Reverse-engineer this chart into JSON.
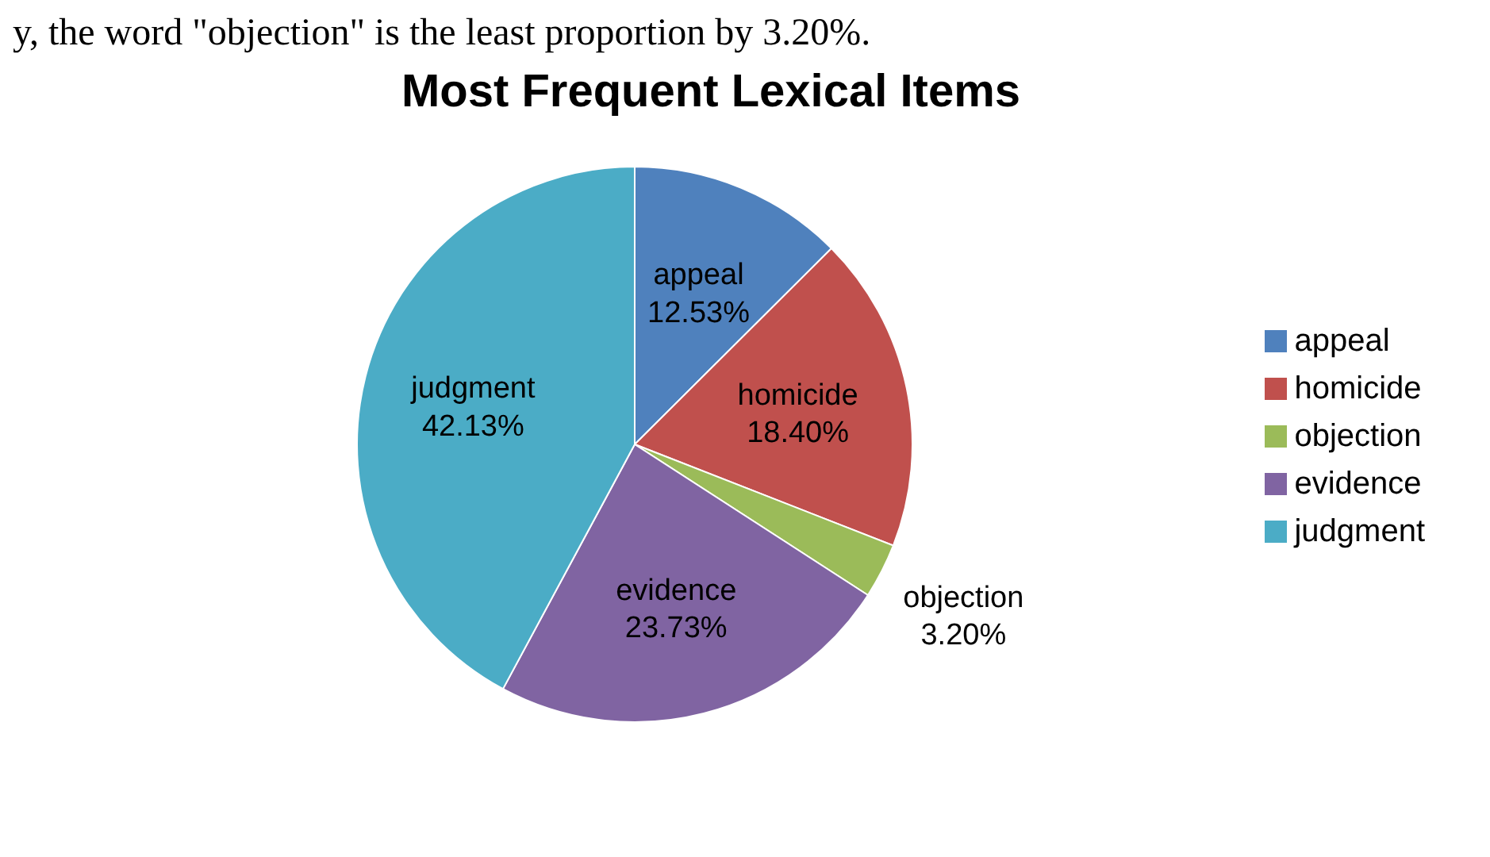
{
  "chart_data": {
    "type": "pie",
    "title": "Most Frequent Lexical Items",
    "annotations": [
      "y, the word \"objection\" is the least proportion by 3.20%."
    ],
    "categories": [
      "appeal",
      "homicide",
      "objection",
      "evidence",
      "judgment"
    ],
    "values": [
      12.53,
      18.4,
      3.2,
      23.73,
      42.13
    ],
    "colors": [
      "#4f81bd",
      "#c0504d",
      "#9bbb59",
      "#8064a2",
      "#4bacc6"
    ],
    "value_labels": [
      "12.53%",
      "18.40%",
      "3.20%",
      "23.73%",
      "42.13%"
    ],
    "legend": "right"
  }
}
